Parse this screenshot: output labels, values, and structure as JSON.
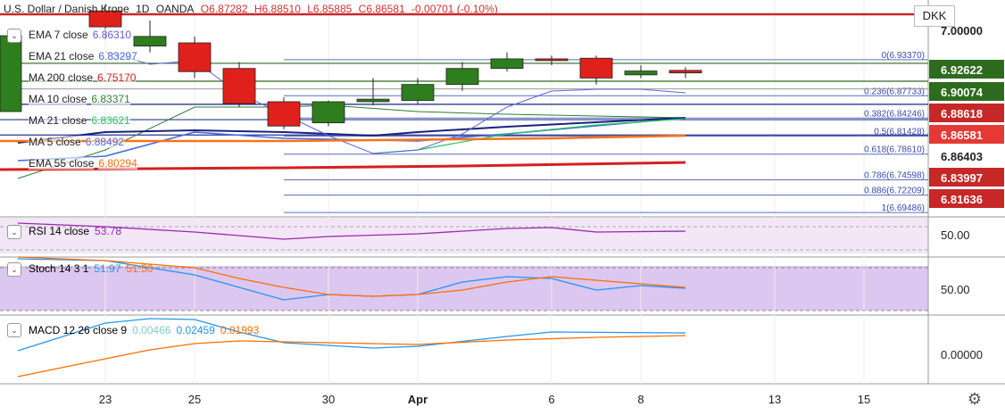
{
  "header": {
    "symbol": "U.S. Dollar / Danish Krone",
    "interval": "1D",
    "source": "OANDA",
    "open": "O6.87282",
    "high": "H6.88510",
    "low": "L6.85885",
    "close": "C6.86581",
    "change": "-0.00701 (-0.10%)"
  },
  "currency": "DKK",
  "indicators": [
    {
      "label": "EMA 7 close",
      "value": "6.86310",
      "color": "#6a5acd"
    },
    {
      "label": "EMA 21 close",
      "value": "6.83297",
      "color": "#4169e1"
    },
    {
      "label": "MA 200 close",
      "value": "6.75170",
      "color": "#d42020"
    },
    {
      "label": "MA 10 close",
      "value": "6.83371",
      "color": "#2e7d32"
    },
    {
      "label": "MA 21 close",
      "value": "6.83621",
      "color": "#22c55e"
    },
    {
      "label": "MA 5 close",
      "value": "6.88492",
      "color": "#5a67d8"
    },
    {
      "label": "EMA 55 close",
      "value": "6.80294",
      "color": "#f97316"
    }
  ],
  "price_labels": [
    {
      "text": "7.00000",
      "bg": "#ffffff",
      "fg": "#222222"
    },
    {
      "text": "6.92622",
      "bg": "#2e6b1f",
      "fg": "#ffffff"
    },
    {
      "text": "6.90074",
      "bg": "#2e6b1f",
      "fg": "#ffffff"
    },
    {
      "text": "6.88618",
      "bg": "#c62828",
      "fg": "#ffffff"
    },
    {
      "text": "6.86581",
      "bg": "#e53935",
      "fg": "#ffffff"
    },
    {
      "text": "6.86403",
      "bg": "#ffffff",
      "fg": "#222222"
    },
    {
      "text": "6.83997",
      "bg": "#c62828",
      "fg": "#ffffff"
    },
    {
      "text": "6.81636",
      "bg": "#c62828",
      "fg": "#ffffff"
    }
  ],
  "fib_labels": [
    "0(6.93370)",
    "0.236(6.87733)",
    "0.382(6.84246)",
    "0.5(6.81428)",
    "0.618(6.78610)",
    "0.786(6.74598)",
    "0.886(6.72209)",
    "1(6.69486)"
  ],
  "x_ticks": [
    "23",
    "25",
    "30",
    "Apr",
    "6",
    "8",
    "13",
    "15"
  ],
  "rsi": {
    "label": "RSI 14 close",
    "value": "53.78",
    "axis": "50.00",
    "color": "#9c27b0"
  },
  "stoch": {
    "label": "Stoch 14 3 1",
    "k": "51.97",
    "d": "51.50",
    "axis": "50.00",
    "k_color": "#2196f3",
    "d_color": "#ff6d00"
  },
  "macd": {
    "label": "MACD 12 26 close 9",
    "hist": "0.00466",
    "macd": "0.02459",
    "signal": "0.01993",
    "axis": "0.00000",
    "macd_color": "#2196f3",
    "signal_color": "#ff6d00"
  },
  "chart_data": {
    "type": "candlestick",
    "title": "U.S. Dollar / Danish Krone, 1D, OANDA",
    "candles": [
      {
        "date": "Mar 23",
        "open": 7.01,
        "high": 7.02,
        "low": 6.965,
        "close": 6.985
      },
      {
        "date": "Mar 24",
        "open": 6.955,
        "high": 6.995,
        "low": 6.945,
        "close": 6.97
      },
      {
        "date": "Mar 25",
        "open": 6.96,
        "high": 6.97,
        "low": 6.905,
        "close": 6.915
      },
      {
        "date": "Mar 26",
        "open": 6.92,
        "high": 6.93,
        "low": 6.86,
        "close": 6.865
      },
      {
        "date": "Mar 27",
        "open": 6.868,
        "high": 6.875,
        "low": 6.825,
        "close": 6.83
      },
      {
        "date": "Mar 30",
        "open": 6.835,
        "high": 6.87,
        "low": 6.83,
        "close": 6.868
      },
      {
        "date": "Mar 31",
        "open": 6.868,
        "high": 6.905,
        "low": 6.862,
        "close": 6.872
      },
      {
        "date": "Apr 1",
        "open": 6.87,
        "high": 6.905,
        "low": 6.865,
        "close": 6.895
      },
      {
        "date": "Apr 2",
        "open": 6.895,
        "high": 6.93,
        "low": 6.885,
        "close": 6.92
      },
      {
        "date": "Apr 3",
        "open": 6.92,
        "high": 6.945,
        "low": 6.915,
        "close": 6.935
      },
      {
        "date": "Apr 6",
        "open": 6.935,
        "high": 6.94,
        "low": 6.925,
        "close": 6.933
      },
      {
        "date": "Apr 7",
        "open": 6.936,
        "high": 6.94,
        "low": 6.895,
        "close": 6.905
      },
      {
        "date": "Apr 8",
        "open": 6.91,
        "high": 6.925,
        "low": 6.905,
        "close": 6.916
      },
      {
        "date": "Apr 9",
        "open": 6.917,
        "high": 6.922,
        "low": 6.905,
        "close": 6.913
      }
    ],
    "ylim": [
      6.69,
      7.02
    ]
  }
}
